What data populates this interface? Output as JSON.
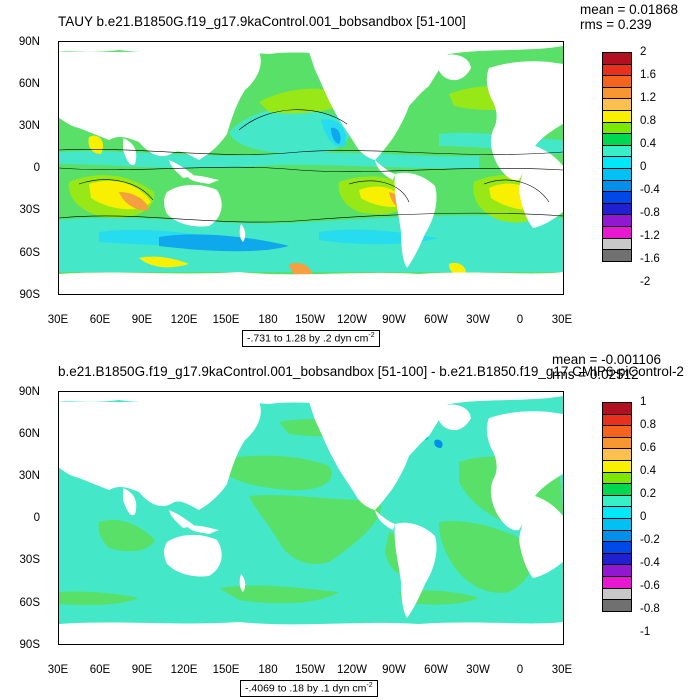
{
  "panels": [
    {
      "title": "TAUY b.e21.B1850G.f19_g17.9kaControl.001_bobsandbox [51-100]",
      "mean_label": "mean = 0.01868",
      "rms_label": "rms = 0.239",
      "contour_info": ".731 to 1.28 by .2 dyn cm",
      "contour_info_prefix": "-",
      "contour_info_sup": "-2",
      "colorbar_labels": [
        "2",
        "1.6",
        "1.2",
        "0.8",
        "0.4",
        "0",
        "-0.4",
        "-0.8",
        "-1.2",
        "-1.6",
        "-2"
      ]
    },
    {
      "title": "b.e21.B1850G.f19_g17.9kaControl.001_bobsandbox [51-100] - b.e21.B1850.f19_g17.CMIP6-piControl-2",
      "mean_label": "mean = -0.001106",
      "rms_label": "rms = 0.02512",
      "contour_info": ".4069 to .18 by .1 dyn cm",
      "contour_info_prefix": "-",
      "contour_info_sup": "-2",
      "colorbar_labels": [
        "1",
        "0.8",
        "0.6",
        "0.4",
        "0.2",
        "0",
        "-0.2",
        "-0.4",
        "-0.6",
        "-0.8",
        "-1"
      ]
    }
  ],
  "lat_labels": [
    "90N",
    "60N",
    "30N",
    "0",
    "30S",
    "60S",
    "90S"
  ],
  "lon_labels": [
    "30E",
    "60E",
    "90E",
    "120E",
    "150E",
    "180",
    "150W",
    "120W",
    "90W",
    "60W",
    "30W",
    "0",
    "30E"
  ],
  "colorbar_colors": [
    "#b01020",
    "#e8301c",
    "#f4641c",
    "#f89632",
    "#fcc050",
    "#f8f000",
    "#7ce800",
    "#00d850",
    "#38f0c8",
    "#00e8f8",
    "#00c0f4",
    "#0090ec",
    "#0048e8",
    "#2020d0",
    "#9018d0",
    "#e818d0",
    "#c8c8c8",
    "#707070"
  ],
  "map_colors": {
    "land": "#ffffff",
    "neutral_pos": "#58e068",
    "neutral_neg": "#44e8c8",
    "light_pos": "#98e818",
    "yellow": "#f8f000",
    "orange": "#f4a040",
    "deep_orange": "#e86020",
    "cyan": "#28dcf0",
    "blue": "#10a8ec"
  }
}
